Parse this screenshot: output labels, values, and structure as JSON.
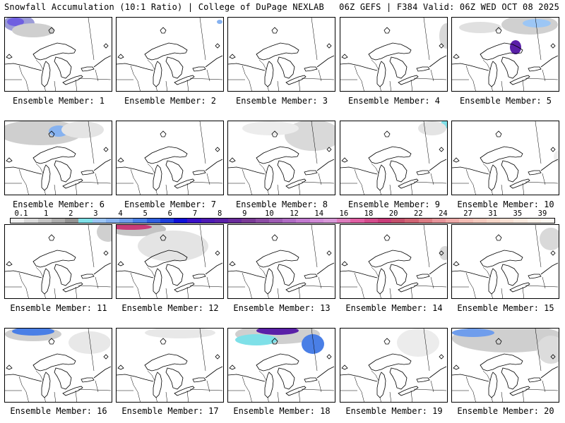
{
  "header": {
    "left": "Snowfall Accumulation (10:1 Ratio) | College of DuPage NEXLAB",
    "right": "06Z GEFS | F384 Valid: 06Z WED OCT 08 2025"
  },
  "panels": [
    {
      "label": "Ensemble Member: 1"
    },
    {
      "label": "Ensemble Member: 2"
    },
    {
      "label": "Ensemble Member: 3"
    },
    {
      "label": "Ensemble Member: 4"
    },
    {
      "label": "Ensemble Member: 5"
    },
    {
      "label": "Ensemble Member: 6"
    },
    {
      "label": "Ensemble Member: 7"
    },
    {
      "label": "Ensemble Member: 8"
    },
    {
      "label": "Ensemble Member: 9"
    },
    {
      "label": "Ensemble Member: 10"
    },
    {
      "label": "Ensemble Member: 11"
    },
    {
      "label": "Ensemble Member: 12"
    },
    {
      "label": "Ensemble Member: 13"
    },
    {
      "label": "Ensemble Member: 14"
    },
    {
      "label": "Ensemble Member: 15"
    },
    {
      "label": "Ensemble Member: 16"
    },
    {
      "label": "Ensemble Member: 17"
    },
    {
      "label": "Ensemble Member: 18"
    },
    {
      "label": "Ensemble Member: 19"
    },
    {
      "label": "Ensemble Member: 20"
    }
  ],
  "scale": {
    "labels": [
      "0.1",
      "1",
      "2",
      "3",
      "4",
      "5",
      "6",
      "7",
      "8",
      "9",
      "10",
      "12",
      "14",
      "16",
      "18",
      "20",
      "22",
      "24",
      "27",
      "31",
      "35",
      "39"
    ],
    "colors": [
      "#eeeeee",
      "#d9d9d9",
      "#c4c4c4",
      "#adadad",
      "#939393",
      "#7fe0e8",
      "#9cc6f5",
      "#86b2f0",
      "#6f9dec",
      "#4a7fe6",
      "#2f5fe0",
      "#1f3fdc",
      "#1010d8",
      "#3a10c8",
      "#4d1ab4",
      "#5a20a8",
      "#6a2c9c",
      "#7a3a96",
      "#8c4ca4",
      "#9e5cb4",
      "#b06cc4",
      "#c27ad0",
      "#d08ad6",
      "#d898d8",
      "#dc7cbc",
      "#e060a4",
      "#d44c8c",
      "#c83c78",
      "#c4506c",
      "#d06474",
      "#dc7c84",
      "#e6949a",
      "#eeaaa8",
      "#f2bcb4",
      "#f4cabe",
      "#f6d6c8",
      "#f8e0d4",
      "#faeadf",
      "#fcf2ea",
      "#fdf8f2"
    ]
  }
}
